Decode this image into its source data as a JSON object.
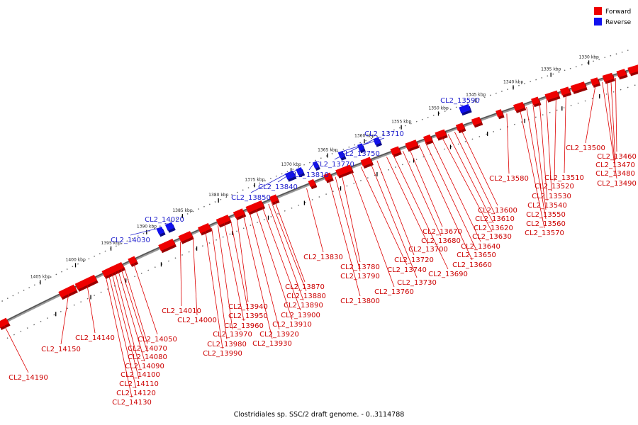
{
  "legend": {
    "forward": {
      "label": "Forward",
      "color": "#ee0000"
    },
    "reverse": {
      "label": "Reverse",
      "color": "#1111ee"
    }
  },
  "caption": "Clostridiales sp. SSC/2 draft genome. - 0..3114788",
  "ruler_ticks": [
    "1330 kbp",
    "1335 kbp",
    "1340 kbp",
    "1345 kbp",
    "1350 kbp",
    "1355 kbp",
    "1360 kbp",
    "1365 kbp",
    "1370 kbp",
    "1375 kbp",
    "1380 kbp",
    "1385 kbp",
    "1390 kbp",
    "1395 kbp",
    "1400 kbp",
    "1405 kbp"
  ],
  "forward_labels": [
    "CL2_13460",
    "CL2_13470",
    "CL2_13480",
    "CL2_13490",
    "CL2_13500",
    "CL2_13510",
    "CL2_13520",
    "CL2_13530",
    "CL2_13540",
    "CL2_13550",
    "CL2_13560",
    "CL2_13570",
    "CL2_13580",
    "CL2_13600",
    "CL2_13610",
    "CL2_13620",
    "CL2_13630",
    "CL2_13640",
    "CL2_13650",
    "CL2_13660",
    "CL2_13670",
    "CL2_13680",
    "CL2_13690",
    "CL2_13700",
    "CL2_13720",
    "CL2_13730",
    "CL2_13740",
    "CL2_13760",
    "CL2_13780",
    "CL2_13790",
    "CL2_13800",
    "CL2_13830",
    "CL2_13870",
    "CL2_13880",
    "CL2_13890",
    "CL2_13900",
    "CL2_13910",
    "CL2_13920",
    "CL2_13930",
    "CL2_13940",
    "CL2_13950",
    "CL2_13960",
    "CL2_13970",
    "CL2_13980",
    "CL2_13990",
    "CL2_14000",
    "CL2_14010",
    "CL2_14050",
    "CL2_14070",
    "CL2_14080",
    "CL2_14090",
    "CL2_14100",
    "CL2_14110",
    "CL2_14120",
    "CL2_14130",
    "CL2_14140",
    "CL2_14150",
    "CL2_14190"
  ],
  "reverse_labels": [
    "CL2_13590",
    "CL2_13710",
    "CL2_13750",
    "CL2_13770",
    "CL2_13810",
    "CL2_13840",
    "CL2_13850",
    "CL2_14020",
    "CL2_14030"
  ]
}
